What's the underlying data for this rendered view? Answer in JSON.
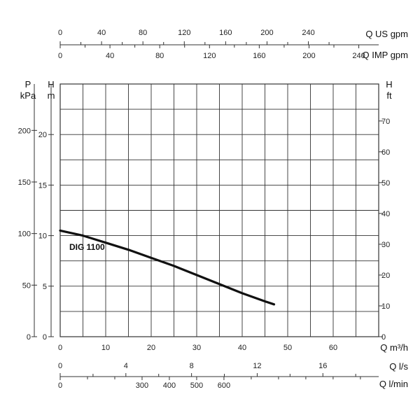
{
  "chart_data": {
    "type": "line",
    "series": [
      {
        "name": "DIG 1100",
        "x": [
          0,
          5,
          10,
          15,
          20,
          25,
          30,
          35,
          40,
          45,
          47
        ],
        "y": [
          10.5,
          10.0,
          9.3,
          8.6,
          7.8,
          7.0,
          6.1,
          5.2,
          4.3,
          3.5,
          3.2
        ]
      }
    ],
    "curve_color": "#111111",
    "grid_color": "#333333",
    "grid": true,
    "x_axis": {
      "unit": "Q m³/h",
      "range": [
        0,
        70
      ],
      "ticks": [
        0,
        10,
        20,
        30,
        40,
        50,
        60
      ]
    },
    "y_axis_left_h": {
      "unit_top": "H",
      "unit_bottom": "m",
      "range": [
        0,
        25
      ],
      "ticks": [
        0,
        5,
        10,
        15,
        20
      ]
    },
    "y_axis_left_p": {
      "unit_top": "P",
      "unit_bottom": "kPa",
      "range": [
        0,
        245
      ],
      "ticks": [
        0,
        50,
        100,
        150,
        200
      ]
    },
    "y_axis_right_ft": {
      "unit_top": "H",
      "unit_bottom": "ft",
      "range": [
        0,
        82
      ],
      "ticks": [
        0,
        10,
        20,
        30,
        40,
        50,
        60,
        70
      ]
    },
    "top_axes": [
      {
        "unit": "Q US gpm",
        "range": [
          0,
          308
        ],
        "ticks": [
          0,
          40,
          80,
          120,
          160,
          200,
          240
        ],
        "minor_ticks": [
          20,
          60,
          100,
          140,
          180,
          220,
          260
        ]
      },
      {
        "unit": "Q IMP gpm",
        "range": [
          0,
          256
        ],
        "ticks": [
          0,
          40,
          80,
          120,
          160,
          200,
          240
        ],
        "minor_ticks": [
          20,
          60,
          100,
          140,
          180,
          220
        ]
      }
    ],
    "bottom_axes": [
      {
        "unit": "Q l/s",
        "range": [
          0,
          19.4
        ],
        "ticks": [
          0,
          4,
          8,
          12,
          16
        ],
        "minor_ticks": [
          2,
          6,
          10,
          14,
          18
        ]
      },
      {
        "unit": "Q l/min",
        "range": [
          0,
          1167
        ],
        "ticks": [
          0,
          300,
          400,
          500,
          600
        ],
        "minor_ticks": [
          100,
          200,
          700,
          800,
          900,
          1000,
          1100
        ]
      }
    ]
  }
}
